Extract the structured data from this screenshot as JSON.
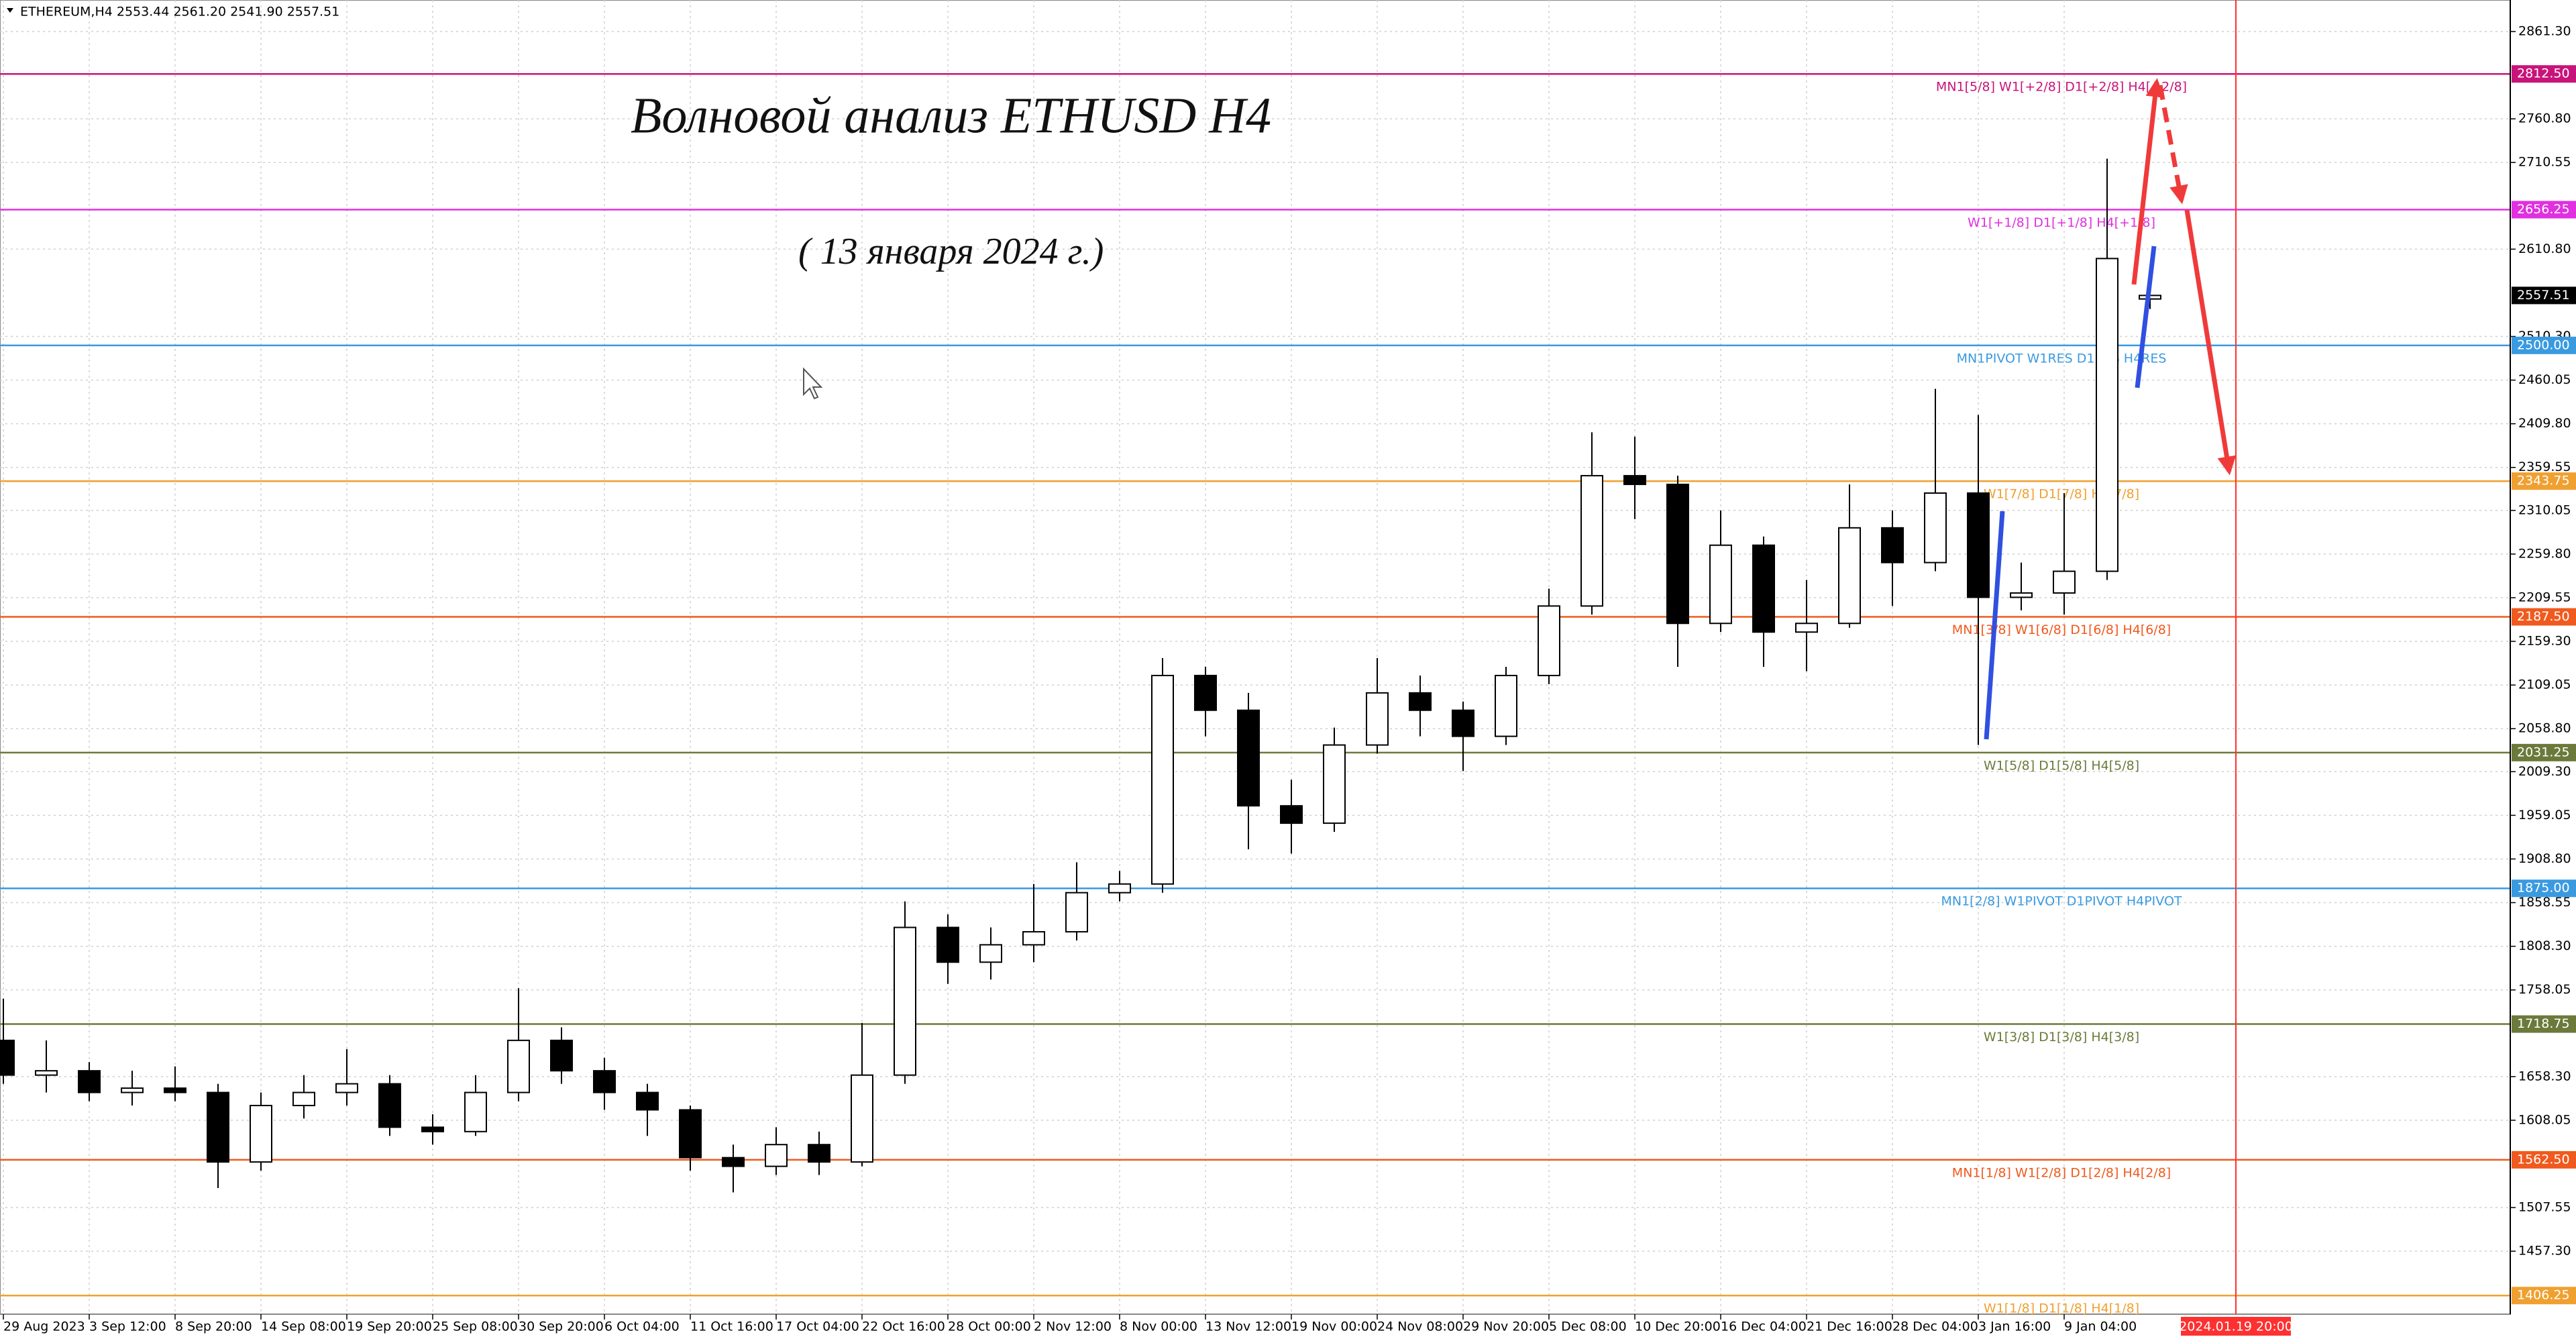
{
  "chart_data": {
    "type": "candlestick",
    "title": "ETHEREUM,H4  2553.44 2561.20 2541.90 2557.51",
    "annotations": [
      "Волновой анализ ETHUSD H4",
      "( 13 января 2024 г.)"
    ],
    "categories": [
      "29 Aug 2023",
      null,
      "3 Sep 12:00",
      null,
      "8 Sep 20:00",
      null,
      "14 Sep 08:00",
      null,
      "19 Sep 20:00",
      null,
      "25 Sep 08:00",
      null,
      "30 Sep 20:00",
      null,
      "6 Oct 04:00",
      null,
      "11 Oct 16:00",
      null,
      "17 Oct 04:00",
      null,
      "22 Oct 16:00",
      null,
      "28 Oct 00:00",
      null,
      "2 Nov 12:00",
      null,
      "8 Nov 00:00",
      null,
      "13 Nov 12:00",
      null,
      "19 Nov 00:00",
      null,
      "24 Nov 08:00",
      null,
      "29 Nov 20:00",
      null,
      "5 Dec 08:00",
      null,
      "10 Dec 20:00",
      null,
      "16 Dec 04:00",
      null,
      "21 Dec 16:00",
      null,
      "28 Dec 04:00",
      null,
      "3 Jan 16:00",
      null,
      "9 Jan 04:00",
      null,
      null,
      null,
      "2024.01.19 20:00"
    ],
    "open": [
      1700,
      1660,
      1665,
      1640,
      1645,
      1640,
      1560,
      1625,
      1640,
      1650,
      1600,
      1595,
      1640,
      1700,
      1665,
      1640,
      1620,
      1565,
      1555,
      1580,
      1560,
      1660,
      1830,
      1790,
      1810,
      1825,
      1870,
      1880,
      2120,
      2080,
      1970,
      1950,
      2040,
      2100,
      2080,
      2050,
      2120,
      2200,
      2350,
      2340,
      2180,
      2270,
      2170,
      2180,
      2290,
      2250,
      2330,
      2210,
      2215,
      2240,
      2553.44,
      null,
      null
    ],
    "high": [
      1748,
      1700,
      1675,
      1665,
      1670,
      1650,
      1640,
      1660,
      1690,
      1660,
      1615,
      1660,
      1760,
      1715,
      1680,
      1650,
      1625,
      1580,
      1600,
      1595,
      1720,
      1860,
      1845,
      1830,
      1880,
      1905,
      1895,
      2140,
      2130,
      2100,
      2000,
      2060,
      2140,
      2120,
      2090,
      2130,
      2220,
      2400,
      2395,
      2350,
      2310,
      2280,
      2230,
      2340,
      2310,
      2450,
      2420,
      2250,
      2330,
      2715,
      2561.2,
      null,
      null
    ],
    "low": [
      1650,
      1640,
      1630,
      1625,
      1630,
      1530,
      1550,
      1610,
      1625,
      1590,
      1580,
      1590,
      1630,
      1650,
      1620,
      1590,
      1550,
      1525,
      1545,
      1545,
      1555,
      1650,
      1765,
      1770,
      1790,
      1815,
      1860,
      1870,
      2050,
      1920,
      1915,
      1940,
      2030,
      2050,
      2010,
      2040,
      2110,
      2190,
      2300,
      2130,
      2170,
      2130,
      2125,
      2175,
      2200,
      2240,
      2040,
      2195,
      2190,
      2230,
      2541.9,
      null,
      null
    ],
    "close": [
      1660,
      1665,
      1640,
      1645,
      1640,
      1560,
      1625,
      1640,
      1650,
      1600,
      1595,
      1640,
      1700,
      1665,
      1640,
      1620,
      1565,
      1555,
      1580,
      1560,
      1660,
      1830,
      1790,
      1810,
      1825,
      1870,
      1880,
      2120,
      2080,
      1970,
      1950,
      2040,
      2100,
      2080,
      2050,
      2120,
      2200,
      2350,
      2340,
      2180,
      2270,
      2170,
      2180,
      2290,
      2250,
      2330,
      2210,
      2215,
      2240,
      2600,
      2557.51,
      null,
      null
    ],
    "ylim": [
      1384.8,
      2897.6
    ],
    "yticks": [
      {
        "value": 2861.3,
        "label": "2861.30"
      },
      {
        "value": 2760.8,
        "label": "2760.80"
      },
      {
        "value": 2710.55,
        "label": "2710.55"
      },
      {
        "value": 2610.8,
        "label": "2610.80"
      },
      {
        "value": 2510.3,
        "label": "2510.30"
      },
      {
        "value": 2460.05,
        "label": "2460.05"
      },
      {
        "value": 2409.8,
        "label": "2409.80"
      },
      {
        "value": 2359.55,
        "label": "2359.55"
      },
      {
        "value": 2310.05,
        "label": "2310.05"
      },
      {
        "value": 2259.8,
        "label": "2259.80"
      },
      {
        "value": 2209.55,
        "label": "2209.55"
      },
      {
        "value": 2159.3,
        "label": "2159.30"
      },
      {
        "value": 2109.05,
        "label": "2109.05"
      },
      {
        "value": 2058.8,
        "label": "2058.80"
      },
      {
        "value": 2009.3,
        "label": "2009.30"
      },
      {
        "value": 1959.05,
        "label": "1959.05"
      },
      {
        "value": 1908.8,
        "label": "1908.80"
      },
      {
        "value": 1858.55,
        "label": "1858.55"
      },
      {
        "value": 1808.3,
        "label": "1808.30"
      },
      {
        "value": 1758.05,
        "label": "1758.05"
      },
      {
        "value": 1658.3,
        "label": "1658.30"
      },
      {
        "value": 1608.05,
        "label": "1608.05"
      },
      {
        "value": 1507.55,
        "label": "1507.55"
      },
      {
        "value": 1457.3,
        "label": "1457.30"
      }
    ],
    "last_price": {
      "value": 2557.51,
      "label": "2557.51"
    },
    "levels": [
      {
        "price": {
          "value": 2812.5,
          "label": "2812.50"
        },
        "label": "MN1[5/8] W1[+2/8] D1[+2/8] H4[+2/8]",
        "color": "#c8147a"
      },
      {
        "price": {
          "value": 2656.25,
          "label": "2656.25"
        },
        "label": "W1[+1/8] D1[+1/8] H4[+1/8]",
        "color": "#e030e0"
      },
      {
        "price": {
          "value": 2500,
          "label": "2500.00"
        },
        "label": "MN1PIVOT W1RES D1RES H4RES",
        "color": "#3a9ae0"
      },
      {
        "price": {
          "value": 2343.75,
          "label": "2343.75"
        },
        "label": "W1[7/8] D1[7/8] H4[7/8]",
        "color": "#f0a030"
      },
      {
        "price": {
          "value": 2187.5,
          "label": "2187.50"
        },
        "label": "MN1[3/8] W1[6/8] D1[6/8] H4[6/8]",
        "color": "#f05a1e"
      },
      {
        "price": {
          "value": 2031.25,
          "label": "2031.25"
        },
        "label": "W1[5/8] D1[5/8] H4[5/8]",
        "color": "#6b7a3a"
      },
      {
        "price": {
          "value": 1875,
          "label": "1875.00"
        },
        "label": "MN1[2/8] W1PIVOT D1PIVOT H4PIVOT",
        "color": "#3a9ae0"
      },
      {
        "price": {
          "value": 1718.75,
          "label": "1718.75"
        },
        "label": "W1[3/8] D1[3/8] H4[3/8]",
        "color": "#6b7a3a"
      },
      {
        "price": {
          "value": 1562.5,
          "label": "1562.50"
        },
        "label": "MN1[1/8] W1[2/8] D1[2/8] H4[2/8]",
        "color": "#f05a1e"
      },
      {
        "price": {
          "value": 1406.25,
          "label": "1406.25"
        },
        "label": "W1[1/8] D1[1/8] H4[1/8]",
        "color": "#f0a030"
      }
    ],
    "grid": true,
    "up_color": "#ffffff",
    "down_color": "#000000",
    "marker_color": "#ff3030"
  }
}
